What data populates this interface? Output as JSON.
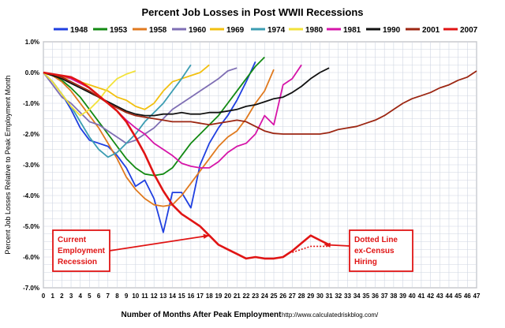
{
  "chart_data": {
    "type": "line",
    "title": "Percent Job Losses in Post WWII Recessions",
    "xlabel": "Number of Months After Peak Employment",
    "ylabel": "Percent Job Losses Relative to Peak Employment Month",
    "source_url": "http://www.calculatedriskblog.com/",
    "xlim": [
      0,
      47
    ],
    "ylim": [
      -7,
      1
    ],
    "x_ticks": [
      "0",
      "1",
      "2",
      "3",
      "4",
      "5",
      "6",
      "7",
      "8",
      "9",
      "10",
      "11",
      "12",
      "13",
      "14",
      "15",
      "16",
      "17",
      "18",
      "19",
      "20",
      "21",
      "22",
      "23",
      "24",
      "25",
      "26",
      "27",
      "28",
      "29",
      "30",
      "31",
      "32",
      "33",
      "34",
      "35",
      "36",
      "37",
      "38",
      "39",
      "40",
      "41",
      "42",
      "43",
      "44",
      "45",
      "46",
      "47"
    ],
    "y_ticks": [
      "1.0%",
      "0.0%",
      "-1.0%",
      "-2.0%",
      "-3.0%",
      "-4.0%",
      "-5.0%",
      "-6.0%",
      "-7.0%"
    ],
    "grid": true,
    "legend_position": "top",
    "series": [
      {
        "name": "1948",
        "color": "#1f3fe0",
        "x": [
          0,
          1,
          2,
          3,
          4,
          5,
          6,
          7,
          8,
          9,
          10,
          11,
          12,
          13,
          14,
          15,
          16,
          17,
          18,
          19,
          20,
          21,
          22,
          23
        ],
        "values": [
          0,
          -0.3,
          -0.7,
          -1.2,
          -1.8,
          -2.2,
          -2.3,
          -2.4,
          -2.7,
          -3.1,
          -3.7,
          -3.5,
          -4.1,
          -5.2,
          -3.9,
          -3.9,
          -4.4,
          -3.0,
          -2.3,
          -1.8,
          -1.4,
          -0.9,
          -0.3,
          0.35
        ]
      },
      {
        "name": "1953",
        "color": "#138a13",
        "x": [
          0,
          1,
          2,
          3,
          4,
          5,
          6,
          7,
          8,
          9,
          10,
          11,
          12,
          13,
          14,
          15,
          16,
          17,
          18,
          19,
          20,
          21,
          22,
          23,
          24
        ],
        "values": [
          0,
          -0.1,
          -0.25,
          -0.5,
          -0.8,
          -1.2,
          -1.6,
          -2.0,
          -2.4,
          -2.8,
          -3.1,
          -3.3,
          -3.35,
          -3.3,
          -3.1,
          -2.7,
          -2.3,
          -2.0,
          -1.7,
          -1.4,
          -1.0,
          -0.6,
          -0.2,
          0.2,
          0.5
        ]
      },
      {
        "name": "1958",
        "color": "#e07a1f",
        "x": [
          0,
          1,
          2,
          3,
          4,
          5,
          6,
          7,
          8,
          9,
          10,
          11,
          12,
          13,
          14,
          15,
          16,
          17,
          18,
          19,
          20,
          21,
          22,
          23,
          24,
          25
        ],
        "values": [
          0,
          -0.1,
          -0.3,
          -0.6,
          -1.0,
          -1.4,
          -1.8,
          -2.3,
          -2.8,
          -3.4,
          -3.8,
          -4.1,
          -4.3,
          -4.35,
          -4.3,
          -4.0,
          -3.6,
          -3.2,
          -2.8,
          -2.4,
          -2.1,
          -1.9,
          -1.5,
          -1.0,
          -0.6,
          0.1
        ]
      },
      {
        "name": "1960",
        "color": "#7f6fb4",
        "x": [
          0,
          1,
          2,
          3,
          4,
          5,
          6,
          7,
          8,
          9,
          10,
          11,
          12,
          13,
          14,
          15,
          16,
          17,
          18,
          19,
          20,
          21
        ],
        "values": [
          0,
          -0.4,
          -0.8,
          -1.0,
          -1.3,
          -1.6,
          -1.7,
          -1.9,
          -2.1,
          -2.3,
          -2.2,
          -2.0,
          -1.8,
          -1.5,
          -1.2,
          -1.0,
          -0.8,
          -0.6,
          -0.4,
          -0.2,
          0.05,
          0.15
        ]
      },
      {
        "name": "1969",
        "color": "#f2c010",
        "x": [
          0,
          1,
          2,
          3,
          4,
          5,
          6,
          7,
          8,
          9,
          10,
          11,
          12,
          13,
          14,
          15,
          16,
          17,
          18
        ],
        "values": [
          0,
          -0.1,
          -0.15,
          -0.2,
          -0.3,
          -0.4,
          -0.5,
          -0.6,
          -0.8,
          -0.9,
          -1.1,
          -1.2,
          -1.0,
          -0.6,
          -0.3,
          -0.2,
          -0.1,
          0.0,
          0.25
        ]
      },
      {
        "name": "1974",
        "color": "#3c9db2",
        "x": [
          0,
          1,
          2,
          3,
          4,
          5,
          6,
          7,
          8,
          9,
          10,
          11,
          12,
          13,
          14,
          15,
          16
        ],
        "values": [
          0,
          -0.3,
          -0.7,
          -1.1,
          -1.6,
          -2.1,
          -2.5,
          -2.75,
          -2.6,
          -2.3,
          -2.0,
          -1.6,
          -1.3,
          -1.0,
          -0.6,
          -0.2,
          0.25
        ]
      },
      {
        "name": "1980",
        "color": "#f2e23a",
        "x": [
          0,
          1,
          2,
          3,
          4,
          5,
          6,
          7,
          8,
          9,
          10
        ],
        "values": [
          0,
          -0.3,
          -0.7,
          -1.1,
          -1.4,
          -1.2,
          -0.9,
          -0.5,
          -0.2,
          -0.05,
          0.05
        ]
      },
      {
        "name": "1981",
        "color": "#d615a8",
        "x": [
          0,
          1,
          2,
          3,
          4,
          5,
          6,
          7,
          8,
          9,
          10,
          11,
          12,
          13,
          14,
          15,
          16,
          17,
          18,
          19,
          20,
          21,
          22,
          23,
          24,
          25,
          26,
          27,
          28
        ],
        "values": [
          0,
          -0.05,
          -0.1,
          -0.2,
          -0.35,
          -0.5,
          -0.75,
          -1.0,
          -1.25,
          -1.55,
          -1.8,
          -2.0,
          -2.3,
          -2.5,
          -2.7,
          -2.95,
          -3.05,
          -3.1,
          -3.1,
          -2.9,
          -2.6,
          -2.4,
          -2.3,
          -2.0,
          -1.4,
          -1.7,
          -0.4,
          -0.2,
          0.25
        ]
      },
      {
        "name": "1990",
        "color": "#111111",
        "x": [
          0,
          1,
          2,
          3,
          4,
          5,
          6,
          7,
          8,
          9,
          10,
          11,
          12,
          13,
          14,
          15,
          16,
          17,
          18,
          19,
          20,
          21,
          22,
          23,
          24,
          25,
          26,
          27,
          28,
          29,
          30,
          31
        ],
        "values": [
          0,
          -0.1,
          -0.2,
          -0.35,
          -0.5,
          -0.65,
          -0.8,
          -0.95,
          -1.1,
          -1.25,
          -1.35,
          -1.4,
          -1.4,
          -1.35,
          -1.35,
          -1.3,
          -1.35,
          -1.35,
          -1.3,
          -1.3,
          -1.25,
          -1.2,
          -1.1,
          -1.05,
          -0.95,
          -0.85,
          -0.8,
          -0.65,
          -0.45,
          -0.2,
          0.0,
          0.15
        ]
      },
      {
        "name": "2001",
        "color": "#9c2612",
        "x": [
          0,
          1,
          2,
          3,
          4,
          5,
          6,
          7,
          8,
          9,
          10,
          11,
          12,
          13,
          14,
          15,
          16,
          17,
          18,
          19,
          20,
          21,
          22,
          23,
          24,
          25,
          26,
          27,
          28,
          29,
          30,
          31,
          32,
          33,
          34,
          35,
          36,
          37,
          38,
          39,
          40,
          41,
          42,
          43,
          44,
          45,
          46,
          47
        ],
        "values": [
          0,
          -0.05,
          -0.15,
          -0.3,
          -0.45,
          -0.6,
          -0.8,
          -1.0,
          -1.15,
          -1.3,
          -1.4,
          -1.45,
          -1.5,
          -1.55,
          -1.6,
          -1.6,
          -1.6,
          -1.65,
          -1.7,
          -1.65,
          -1.6,
          -1.55,
          -1.6,
          -1.75,
          -1.9,
          -1.98,
          -2.0,
          -2.0,
          -2.0,
          -2.0,
          -2.0,
          -1.95,
          -1.85,
          -1.8,
          -1.75,
          -1.65,
          -1.55,
          -1.4,
          -1.2,
          -1.0,
          -0.85,
          -0.75,
          -0.65,
          -0.5,
          -0.4,
          -0.25,
          -0.15,
          0.05
        ]
      },
      {
        "name": "2007",
        "color": "#e01414",
        "x": [
          0,
          1,
          2,
          3,
          4,
          5,
          6,
          7,
          8,
          9,
          10,
          11,
          12,
          13,
          14,
          15,
          16,
          17,
          18,
          19,
          20,
          21,
          22,
          23,
          24,
          25,
          26,
          27,
          28,
          29,
          30,
          31
        ],
        "values": [
          0,
          -0.05,
          -0.1,
          -0.15,
          -0.3,
          -0.5,
          -0.75,
          -1.0,
          -1.25,
          -1.6,
          -2.1,
          -2.65,
          -3.3,
          -3.85,
          -4.3,
          -4.6,
          -4.8,
          -5.0,
          -5.3,
          -5.6,
          -5.75,
          -5.9,
          -6.05,
          -6.0,
          -6.05,
          -6.05,
          -6.0,
          -5.8,
          -5.55,
          -5.3,
          -5.45,
          -5.6
        ]
      }
    ],
    "census_dotted_line": {
      "color": "#e01414",
      "x": [
        27,
        28,
        29,
        30,
        31
      ],
      "values": [
        -5.85,
        -5.75,
        -5.65,
        -5.65,
        -5.65
      ]
    },
    "annotations": [
      {
        "text_lines": [
          "Current",
          "Employment",
          "Recession"
        ],
        "target": {
          "x": 18,
          "y": -5.3
        }
      },
      {
        "text_lines": [
          "Dotted Line",
          "ex-Census",
          "Hiring"
        ],
        "target": {
          "x": 30.5,
          "y": -5.6
        }
      }
    ]
  }
}
